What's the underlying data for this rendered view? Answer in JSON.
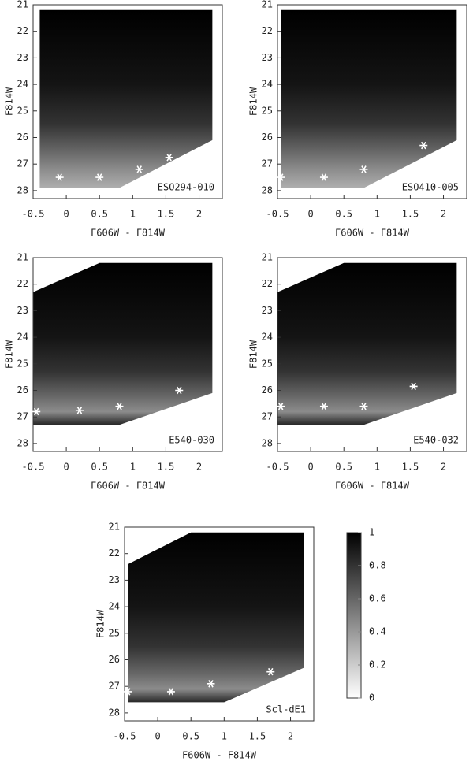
{
  "chart_data": [
    {
      "type": "scatter",
      "label": "ESO294-010",
      "xlabel": "F606W - F814W",
      "ylabel": "F814W",
      "xlim": [
        -0.5,
        2.35
      ],
      "ylim": [
        21,
        28.3
      ],
      "xticks": [
        -0.5,
        0,
        0.5,
        1,
        1.5,
        2
      ],
      "yticks": [
        21,
        22,
        23,
        24,
        25,
        26,
        27,
        28
      ],
      "x": [
        -0.1,
        0.5,
        1.1,
        1.55
      ],
      "values": [
        27.5,
        27.5,
        27.2,
        26.75
      ],
      "region": [
        [
          -0.4,
          21.2
        ],
        [
          2.2,
          21.2
        ],
        [
          2.2,
          26.1
        ],
        [
          0.8,
          27.9
        ],
        [
          -0.4,
          27.9
        ]
      ],
      "completeness_y": [
        21.2,
        24,
        25.5,
        26.5,
        27.2,
        28
      ],
      "completeness": [
        1,
        0.92,
        0.8,
        0.6,
        0.45,
        0.3
      ]
    },
    {
      "type": "scatter",
      "label": "ESO410-005",
      "xlabel": "F606W - F814W",
      "ylabel": "F814W",
      "xlim": [
        -0.5,
        2.35
      ],
      "ylim": [
        21,
        28.3
      ],
      "xticks": [
        -0.5,
        0,
        0.5,
        1,
        1.5,
        2
      ],
      "yticks": [
        21,
        22,
        23,
        24,
        25,
        26,
        27,
        28
      ],
      "x": [
        -0.45,
        0.2,
        0.8,
        1.7
      ],
      "values": [
        27.5,
        27.5,
        27.2,
        26.3
      ],
      "region": [
        [
          -0.45,
          21.2
        ],
        [
          2.2,
          21.2
        ],
        [
          2.2,
          26.1
        ],
        [
          0.8,
          27.9
        ],
        [
          -0.45,
          27.9
        ]
      ],
      "completeness_y": [
        21.2,
        24,
        25.5,
        26.5,
        27.2,
        28
      ],
      "completeness": [
        1,
        0.92,
        0.8,
        0.6,
        0.45,
        0.3
      ]
    },
    {
      "type": "scatter",
      "label": "E540-030",
      "xlabel": "F606W - F814W",
      "ylabel": "F814W",
      "xlim": [
        -0.5,
        2.35
      ],
      "ylim": [
        21,
        28.3
      ],
      "xticks": [
        -0.5,
        0,
        0.5,
        1,
        1.5,
        2
      ],
      "yticks": [
        21,
        22,
        23,
        24,
        25,
        26,
        27,
        28
      ],
      "x": [
        -0.45,
        0.2,
        0.8,
        1.7
      ],
      "values": [
        26.8,
        26.75,
        26.6,
        26.0
      ],
      "region": [
        [
          -0.5,
          22.3
        ],
        [
          0.5,
          21.2
        ],
        [
          2.2,
          21.2
        ],
        [
          2.2,
          26.1
        ],
        [
          0.8,
          27.3
        ],
        [
          -0.5,
          27.3
        ]
      ],
      "completeness_y": [
        21.2,
        24,
        25.3,
        26.2,
        26.8,
        27.3
      ],
      "completeness": [
        1,
        0.92,
        0.8,
        0.6,
        0.45,
        0.85
      ]
    },
    {
      "type": "scatter",
      "label": "E540-032",
      "xlabel": "F606W - F814W",
      "ylabel": "F814W",
      "xlim": [
        -0.5,
        2.35
      ],
      "ylim": [
        21,
        28.3
      ],
      "xticks": [
        -0.5,
        0,
        0.5,
        1,
        1.5,
        2
      ],
      "yticks": [
        21,
        22,
        23,
        24,
        25,
        26,
        27,
        28
      ],
      "x": [
        -0.45,
        0.2,
        0.8,
        1.55
      ],
      "values": [
        26.6,
        26.6,
        26.6,
        25.85
      ],
      "region": [
        [
          -0.5,
          22.3
        ],
        [
          0.5,
          21.2
        ],
        [
          2.2,
          21.2
        ],
        [
          2.2,
          26.1
        ],
        [
          0.8,
          27.3
        ],
        [
          -0.5,
          27.3
        ]
      ],
      "completeness_y": [
        21.2,
        24,
        25.3,
        26.2,
        26.8,
        27.3
      ],
      "completeness": [
        1,
        0.92,
        0.8,
        0.6,
        0.45,
        0.85
      ]
    },
    {
      "type": "scatter",
      "label": "Scl-dE1",
      "xlabel": "F606W - F814W",
      "ylabel": "F814W",
      "xlim": [
        -0.5,
        2.35
      ],
      "ylim": [
        21,
        28.3
      ],
      "xticks": [
        -0.5,
        0,
        0.5,
        1,
        1.5,
        2
      ],
      "yticks": [
        21,
        22,
        23,
        24,
        25,
        26,
        27,
        28
      ],
      "x": [
        -0.45,
        0.2,
        0.8,
        1.7
      ],
      "values": [
        27.2,
        27.2,
        26.9,
        26.45
      ],
      "region": [
        [
          -0.45,
          22.4
        ],
        [
          0.5,
          21.2
        ],
        [
          2.2,
          21.2
        ],
        [
          2.2,
          26.3
        ],
        [
          1.0,
          27.6
        ],
        [
          -0.45,
          27.6
        ]
      ],
      "completeness_y": [
        21.2,
        24,
        25.5,
        26.5,
        27.1,
        27.6
      ],
      "completeness": [
        1,
        0.92,
        0.8,
        0.6,
        0.45,
        0.85
      ]
    },
    {
      "type": "colorbar",
      "ylim": [
        0,
        1
      ],
      "yticks": [
        0,
        0.2,
        0.4,
        0.6,
        0.8,
        1
      ]
    }
  ]
}
